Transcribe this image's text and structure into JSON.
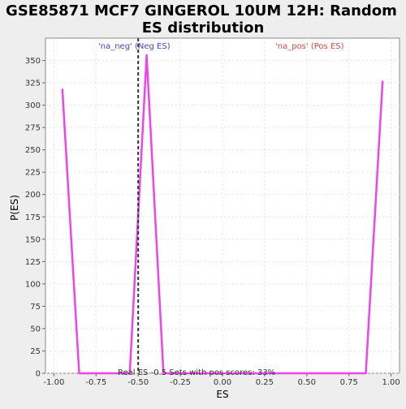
{
  "chart_data": {
    "type": "line",
    "title_line1": "GSE85871 MCF7 GINGEROL 10UM 12H: Random",
    "title_line2": "ES distribution",
    "xlabel": "ES",
    "ylabel": "P(ES)",
    "xlim": [
      -1.05,
      1.05
    ],
    "ylim": [
      0,
      375
    ],
    "x_ticks": [
      -1.0,
      -0.75,
      -0.5,
      -0.25,
      0.0,
      0.25,
      0.5,
      0.75,
      1.0
    ],
    "x_tick_labels": [
      "-1.00",
      "-0.75",
      "-0.50",
      "-0.25",
      "0.00",
      "0.25",
      "0.50",
      "0.75",
      "1.00"
    ],
    "y_ticks": [
      0,
      25,
      50,
      75,
      100,
      125,
      150,
      175,
      200,
      225,
      250,
      275,
      300,
      325,
      350
    ],
    "y_tick_labels": [
      "0",
      "25",
      "50",
      "75",
      "100",
      "125",
      "150",
      "175",
      "200",
      "225",
      "250",
      "275",
      "300",
      "325",
      "350"
    ],
    "grid": true,
    "series": [
      {
        "color": "#ee44ee",
        "x": [
          -0.95,
          -0.85,
          -0.75,
          -0.65,
          -0.55,
          -0.45,
          -0.35,
          -0.25,
          -0.15,
          -0.05,
          0.05,
          0.15,
          0.25,
          0.35,
          0.45,
          0.55,
          0.65,
          0.75,
          0.85,
          0.95
        ],
        "y": [
          318,
          0,
          0,
          0,
          0,
          356,
          0,
          0,
          0,
          0,
          0,
          0,
          0,
          0,
          0,
          0,
          0,
          0,
          0,
          327
        ]
      }
    ],
    "real_es_line": {
      "x": -0.5,
      "color": "#333333"
    },
    "annotations": {
      "neg_label": "'na_neg' (Neg ES)",
      "neg_color": "#4444cc",
      "pos_label": "'na_pos' (Pos ES)",
      "pos_color": "#dd4444",
      "bottom_note": "Real ES -0.5 Sets with pos scores: 33%"
    }
  }
}
